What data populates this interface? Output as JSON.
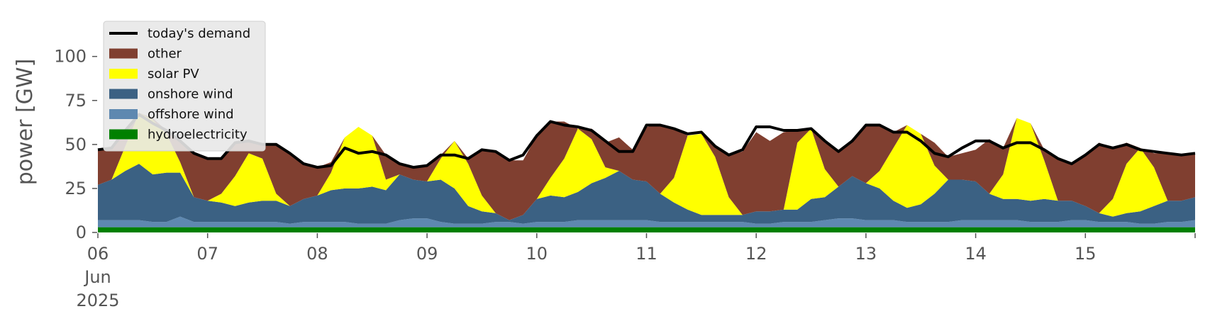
{
  "chart_data": {
    "type": "area",
    "ylabel": "power [GW]",
    "xlabel": "",
    "ylim": [
      0,
      120
    ],
    "xlim": [
      "2025-06-06 00:00",
      "2025-06-16 00:00"
    ],
    "grid": false,
    "legend_position": "top-left",
    "y_ticks": [
      "0",
      "25",
      "50",
      "75",
      "100"
    ],
    "x_ticks": [
      {
        "label": "06",
        "sub1": "Jun",
        "sub2": "2025"
      },
      {
        "label": "07"
      },
      {
        "label": "08"
      },
      {
        "label": "09"
      },
      {
        "label": "10"
      },
      {
        "label": "11"
      },
      {
        "label": "12"
      },
      {
        "label": "13"
      },
      {
        "label": "14"
      },
      {
        "label": "15"
      }
    ],
    "x": [
      "2025-06-06 00:00",
      "2025-06-06 03:00",
      "2025-06-06 06:00",
      "2025-06-06 09:00",
      "2025-06-06 12:00",
      "2025-06-06 15:00",
      "2025-06-06 18:00",
      "2025-06-06 21:00",
      "2025-06-07 00:00",
      "2025-06-07 03:00",
      "2025-06-07 06:00",
      "2025-06-07 09:00",
      "2025-06-07 12:00",
      "2025-06-07 15:00",
      "2025-06-07 18:00",
      "2025-06-07 21:00",
      "2025-06-08 00:00",
      "2025-06-08 03:00",
      "2025-06-08 06:00",
      "2025-06-08 09:00",
      "2025-06-08 12:00",
      "2025-06-08 15:00",
      "2025-06-08 18:00",
      "2025-06-08 21:00",
      "2025-06-09 00:00",
      "2025-06-09 03:00",
      "2025-06-09 06:00",
      "2025-06-09 09:00",
      "2025-06-09 12:00",
      "2025-06-09 15:00",
      "2025-06-09 18:00",
      "2025-06-09 21:00",
      "2025-06-10 00:00",
      "2025-06-10 03:00",
      "2025-06-10 06:00",
      "2025-06-10 09:00",
      "2025-06-10 12:00",
      "2025-06-10 15:00",
      "2025-06-10 18:00",
      "2025-06-10 21:00",
      "2025-06-11 00:00",
      "2025-06-11 03:00",
      "2025-06-11 06:00",
      "2025-06-11 09:00",
      "2025-06-11 12:00",
      "2025-06-11 15:00",
      "2025-06-11 18:00",
      "2025-06-11 21:00",
      "2025-06-12 00:00",
      "2025-06-12 03:00",
      "2025-06-12 06:00",
      "2025-06-12 09:00",
      "2025-06-12 12:00",
      "2025-06-12 15:00",
      "2025-06-12 18:00",
      "2025-06-12 21:00",
      "2025-06-13 00:00",
      "2025-06-13 03:00",
      "2025-06-13 06:00",
      "2025-06-13 09:00",
      "2025-06-13 12:00",
      "2025-06-13 15:00",
      "2025-06-13 18:00",
      "2025-06-13 21:00",
      "2025-06-14 00:00",
      "2025-06-14 03:00",
      "2025-06-14 06:00",
      "2025-06-14 09:00",
      "2025-06-14 12:00",
      "2025-06-14 15:00",
      "2025-06-14 18:00",
      "2025-06-14 21:00",
      "2025-06-15 00:00",
      "2025-06-15 03:00",
      "2025-06-15 06:00",
      "2025-06-15 09:00",
      "2025-06-15 12:00",
      "2025-06-15 15:00",
      "2025-06-15 18:00",
      "2025-06-15 21:00",
      "2025-06-16 00:00"
    ],
    "demand": {
      "name": "today's demand",
      "color": "#000000",
      "values": [
        47,
        48,
        58,
        67,
        62,
        58,
        52,
        45,
        42,
        42,
        51,
        52,
        50,
        50,
        45,
        39,
        37,
        38,
        48,
        45,
        46,
        44,
        39,
        37,
        38,
        44,
        44,
        42,
        47,
        46,
        41,
        44,
        55,
        63,
        61,
        60,
        58,
        52,
        46,
        46,
        61,
        61,
        59,
        56,
        57,
        49,
        44,
        47,
        60,
        60,
        58,
        58,
        59,
        52,
        46,
        52,
        61,
        61,
        57,
        57,
        52,
        45,
        43,
        48,
        52,
        52,
        48,
        51,
        51,
        47,
        42,
        39,
        44,
        50,
        48,
        50,
        47,
        46,
        45,
        44,
        45
      ]
    },
    "series": [
      {
        "name": "hydroelectricity",
        "color": "#008000",
        "values": [
          3,
          3,
          3,
          3,
          3,
          3,
          3,
          3,
          3,
          3,
          3,
          3,
          3,
          3,
          3,
          3,
          3,
          3,
          3,
          3,
          3,
          3,
          3,
          3,
          3,
          3,
          3,
          3,
          3,
          3,
          3,
          3,
          3,
          3,
          3,
          3,
          3,
          3,
          3,
          3,
          3,
          3,
          3,
          3,
          3,
          3,
          3,
          3,
          3,
          3,
          3,
          3,
          3,
          3,
          3,
          3,
          3,
          3,
          3,
          3,
          3,
          3,
          3,
          3,
          3,
          3,
          3,
          3,
          3,
          3,
          3,
          3,
          3,
          3,
          3,
          3,
          3,
          3,
          3,
          3,
          3
        ]
      },
      {
        "name": "offshore wind",
        "color": "#5e88b0",
        "values": [
          4,
          4,
          4,
          4,
          3,
          3,
          6,
          3,
          3,
          3,
          3,
          3,
          3,
          3,
          2,
          3,
          3,
          3,
          3,
          2,
          2,
          2,
          4,
          5,
          5,
          3,
          2,
          2,
          2,
          3,
          3,
          2,
          3,
          3,
          3,
          4,
          4,
          4,
          4,
          4,
          4,
          3,
          3,
          3,
          3,
          3,
          3,
          3,
          2,
          2,
          3,
          3,
          3,
          4,
          5,
          5,
          4,
          4,
          4,
          3,
          3,
          3,
          3,
          4,
          4,
          4,
          4,
          4,
          3,
          3,
          3,
          4,
          4,
          3,
          3,
          3,
          2,
          2,
          3,
          3,
          4
        ]
      },
      {
        "name": "onshore wind",
        "color": "#3b6183",
        "values": [
          20,
          23,
          28,
          32,
          27,
          28,
          25,
          14,
          12,
          11,
          9,
          11,
          12,
          12,
          10,
          13,
          15,
          18,
          19,
          20,
          21,
          19,
          26,
          22,
          21,
          24,
          20,
          10,
          7,
          5,
          1,
          5,
          13,
          15,
          14,
          16,
          21,
          24,
          28,
          23,
          22,
          16,
          11,
          7,
          4,
          4,
          4,
          4,
          7,
          7,
          7,
          7,
          13,
          13,
          18,
          24,
          21,
          18,
          11,
          8,
          10,
          16,
          24,
          23,
          22,
          15,
          12,
          12,
          12,
          13,
          12,
          11,
          8,
          5,
          3,
          5,
          7,
          10,
          12,
          12,
          13
        ]
      },
      {
        "name": "solar PV",
        "color": "#ffff00",
        "values": [
          0,
          0,
          14,
          29,
          31,
          22,
          6,
          0,
          0,
          5,
          17,
          28,
          24,
          4,
          0,
          0,
          0,
          10,
          29,
          35,
          29,
          6,
          0,
          0,
          0,
          12,
          27,
          24,
          9,
          0,
          0,
          0,
          0,
          10,
          22,
          36,
          25,
          6,
          0,
          0,
          0,
          0,
          14,
          42,
          46,
          33,
          10,
          0,
          0,
          0,
          0,
          38,
          40,
          16,
          0,
          0,
          0,
          10,
          30,
          47,
          40,
          16,
          0,
          0,
          0,
          0,
          14,
          46,
          44,
          22,
          0,
          0,
          0,
          0,
          10,
          28,
          36,
          22,
          0,
          0,
          0
        ]
      },
      {
        "name": "other",
        "color": "#803f30",
        "values": [
          20,
          18,
          9,
          0,
          1,
          2,
          12,
          25,
          24,
          20,
          19,
          7,
          8,
          28,
          30,
          20,
          16,
          6,
          0,
          0,
          0,
          14,
          6,
          7,
          9,
          2,
          0,
          3,
          26,
          35,
          34,
          31,
          36,
          32,
          21,
          0,
          6,
          14,
          19,
          17,
          31,
          39,
          28,
          0,
          0,
          6,
          24,
          36,
          45,
          40,
          44,
          7,
          0,
          15,
          20,
          20,
          33,
          26,
          9,
          0,
          0,
          13,
          13,
          15,
          18,
          31,
          15,
          0,
          0,
          6,
          24,
          21,
          29,
          40,
          29,
          12,
          0,
          8,
          27,
          26,
          25
        ]
      }
    ]
  }
}
